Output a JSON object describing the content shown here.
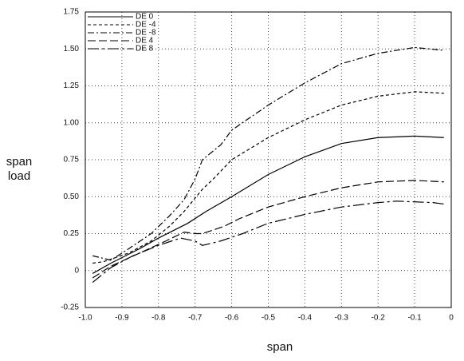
{
  "chart_data": {
    "type": "line",
    "xlabel": "span",
    "ylabel": [
      "span",
      "load"
    ],
    "xlim": [
      -1,
      0
    ],
    "ylim": [
      -0.25,
      1.75
    ],
    "xticks": [
      {
        "value": -1,
        "label": "-1.0"
      },
      -0.9,
      -0.8,
      -0.7,
      -0.6,
      -0.5,
      -0.4,
      -0.3,
      -0.2,
      -0.1,
      0
    ],
    "yticks": [
      -0.25,
      0,
      0.25,
      {
        "value": 0.5,
        "label": "0.50"
      },
      0.75,
      {
        "value": 1,
        "label": "1.00"
      },
      1.25,
      {
        "value": 1.5,
        "label": "1.50"
      },
      1.75
    ],
    "grid": true,
    "legend": "upper left",
    "series": [
      {
        "name": "DE 0",
        "color": "#000000",
        "dash": "none",
        "x": [
          -0.98,
          -0.93,
          -0.85,
          -0.8,
          -0.72,
          -0.67,
          -0.6,
          -0.5,
          -0.4,
          -0.3,
          -0.2,
          -0.1,
          -0.02
        ],
        "values": [
          -0.02,
          0.05,
          0.15,
          0.22,
          0.32,
          0.4,
          0.5,
          0.65,
          0.77,
          0.86,
          0.9,
          0.91,
          0.9
        ]
      },
      {
        "name": "DE -4",
        "color": "#000000",
        "dash": "4,3",
        "x": [
          -0.98,
          -0.95,
          -0.88,
          -0.82,
          -0.77,
          -0.73,
          -0.68,
          -0.65,
          -0.6,
          -0.5,
          -0.4,
          -0.3,
          -0.2,
          -0.1,
          -0.02
        ],
        "values": [
          0.05,
          0.06,
          0.12,
          0.2,
          0.3,
          0.4,
          0.55,
          0.62,
          0.75,
          0.9,
          1.02,
          1.12,
          1.18,
          1.21,
          1.2
        ]
      },
      {
        "name": "DE -8",
        "color": "#000000",
        "dash": "8,3,2,3",
        "x": [
          -0.98,
          -0.93,
          -0.88,
          -0.82,
          -0.77,
          -0.73,
          -0.7,
          -0.68,
          -0.63,
          -0.6,
          -0.5,
          -0.4,
          -0.3,
          -0.2,
          -0.1,
          -0.02
        ],
        "values": [
          0.1,
          0.07,
          0.15,
          0.25,
          0.37,
          0.48,
          0.62,
          0.75,
          0.85,
          0.95,
          1.12,
          1.27,
          1.4,
          1.47,
          1.51,
          1.49
        ]
      },
      {
        "name": "DE 4",
        "color": "#000000",
        "dash": "10,4",
        "x": [
          -0.98,
          -0.93,
          -0.85,
          -0.78,
          -0.73,
          -0.7,
          -0.68,
          -0.62,
          -0.58,
          -0.5,
          -0.4,
          -0.3,
          -0.2,
          -0.1,
          -0.02
        ],
        "values": [
          -0.05,
          0.03,
          0.12,
          0.2,
          0.26,
          0.25,
          0.25,
          0.3,
          0.35,
          0.43,
          0.5,
          0.56,
          0.6,
          0.61,
          0.6
        ]
      },
      {
        "name": "DE 8",
        "color": "#000000",
        "dash": "14,4,3,4",
        "x": [
          -0.98,
          -0.93,
          -0.87,
          -0.8,
          -0.74,
          -0.7,
          -0.68,
          -0.63,
          -0.57,
          -0.5,
          -0.4,
          -0.3,
          -0.2,
          -0.15,
          -0.05,
          -0.02
        ],
        "values": [
          -0.08,
          0.02,
          0.1,
          0.17,
          0.22,
          0.2,
          0.17,
          0.2,
          0.25,
          0.32,
          0.38,
          0.43,
          0.46,
          0.47,
          0.46,
          0.45
        ]
      }
    ]
  }
}
